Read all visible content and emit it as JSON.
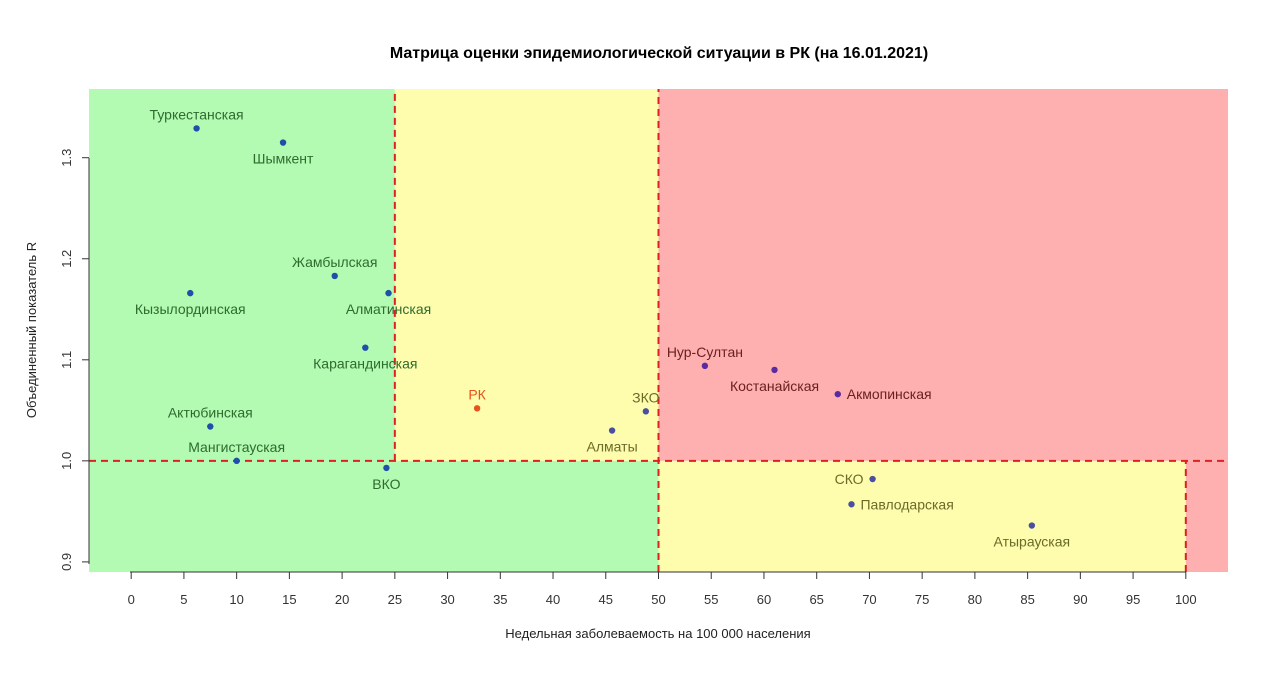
{
  "chart_data": {
    "type": "scatter",
    "title": "Матрица оценки эпидемиологической ситуации в РК (на 16.01.2021)",
    "xlabel": "Недельная заболеваемость на 100 000 населения",
    "ylabel": "Объединенный показатель R",
    "xlim": [
      -4,
      104
    ],
    "ylim": [
      0.89,
      1.368
    ],
    "xticks": [
      0,
      5,
      10,
      15,
      20,
      25,
      30,
      35,
      40,
      45,
      50,
      55,
      60,
      65,
      70,
      75,
      80,
      85,
      90,
      95,
      100
    ],
    "yticks": [
      0.9,
      1.0,
      1.1,
      1.2,
      1.3
    ],
    "ytick_labels": [
      "0.9",
      "1.0",
      "1.1",
      "1.2",
      "1.3"
    ],
    "grid": false,
    "zones": [
      {
        "x": [
          -4,
          25
        ],
        "y": [
          0.89,
          1.368
        ],
        "color": "#b3fab3"
      },
      {
        "x": [
          25,
          50
        ],
        "y": [
          1.0,
          1.368
        ],
        "color": "#fdfdad"
      },
      {
        "x": [
          -4,
          50
        ],
        "y": [
          0.89,
          1.0
        ],
        "color": "#b3fab3"
      },
      {
        "x": [
          50,
          104
        ],
        "y": [
          1.0,
          1.368
        ],
        "color": "#feb0b0"
      },
      {
        "x": [
          50,
          100
        ],
        "y": [
          0.89,
          1.0
        ],
        "color": "#fdfdad"
      },
      {
        "x": [
          100,
          104
        ],
        "y": [
          0.89,
          1.0
        ],
        "color": "#feb0b0"
      }
    ],
    "threshold_lines": [
      {
        "x": [
          25,
          25
        ],
        "y": [
          1.0,
          1.368
        ]
      },
      {
        "x": [
          50,
          50
        ],
        "y": [
          0.89,
          1.368
        ]
      },
      {
        "x": [
          -4,
          104
        ],
        "y": [
          1.0,
          1.0
        ]
      },
      {
        "x": [
          100,
          100
        ],
        "y": [
          0.89,
          1.0
        ]
      }
    ],
    "threshold_color": "#e02020",
    "points": [
      {
        "name": "Туркестанская",
        "x": 6.2,
        "y": 1.329,
        "color": "#1f4fa8",
        "label_color": "#2f6b2f",
        "label_pos": "above"
      },
      {
        "name": "Шымкент",
        "x": 14.4,
        "y": 1.315,
        "color": "#1f4fa8",
        "label_color": "#2f6b2f",
        "label_pos": "below"
      },
      {
        "name": "Жамбылская",
        "x": 19.3,
        "y": 1.183,
        "color": "#1f4fa8",
        "label_color": "#2f6b2f",
        "label_pos": "above"
      },
      {
        "name": "Кызылординская",
        "x": 5.6,
        "y": 1.166,
        "color": "#1f4fa8",
        "label_color": "#2f6b2f",
        "label_pos": "below"
      },
      {
        "name": "Алматинская",
        "x": 24.4,
        "y": 1.166,
        "color": "#1f4fa8",
        "label_color": "#2f6b2f",
        "label_pos": "below"
      },
      {
        "name": "Карагандинская",
        "x": 22.2,
        "y": 1.112,
        "color": "#1f4fa8",
        "label_color": "#2f6b2f",
        "label_pos": "below"
      },
      {
        "name": "Актюбинская",
        "x": 7.5,
        "y": 1.034,
        "color": "#1f4fa8",
        "label_color": "#2f6b2f",
        "label_pos": "above"
      },
      {
        "name": "Мангистауская",
        "x": 10.0,
        "y": 1.0,
        "color": "#1f4fa8",
        "label_color": "#2f6b2f",
        "label_pos": "above"
      },
      {
        "name": "ВКО",
        "x": 24.2,
        "y": 0.993,
        "color": "#1f4fa8",
        "label_color": "#2f6b2f",
        "label_pos": "below"
      },
      {
        "name": "РК",
        "x": 32.8,
        "y": 1.052,
        "color": "#e8521e",
        "label_color": "#e8521e",
        "label_pos": "above"
      },
      {
        "name": "ЗКО",
        "x": 48.8,
        "y": 1.049,
        "color": "#4a4fa0",
        "label_color": "#6b6b2a",
        "label_pos": "above"
      },
      {
        "name": "Алматы",
        "x": 45.6,
        "y": 1.03,
        "color": "#4a4fa0",
        "label_color": "#6b6b2a",
        "label_pos": "below"
      },
      {
        "name": "Нур-Султан",
        "x": 54.4,
        "y": 1.094,
        "color": "#5a2aa0",
        "label_color": "#6b2020",
        "label_pos": "above"
      },
      {
        "name": "Костанайская",
        "x": 61.0,
        "y": 1.09,
        "color": "#5a2aa0",
        "label_color": "#6b2020",
        "label_pos": "below"
      },
      {
        "name": "Акмопинская",
        "x": 67.0,
        "y": 1.066,
        "color": "#5a2aa0",
        "label_color": "#6b2020",
        "label_pos": "right"
      },
      {
        "name": "СКО",
        "x": 70.3,
        "y": 0.982,
        "color": "#4a4fa0",
        "label_color": "#6b6b2a",
        "label_pos": "left"
      },
      {
        "name": "Павлодарская",
        "x": 68.3,
        "y": 0.957,
        "color": "#4a4fa0",
        "label_color": "#6b6b2a",
        "label_pos": "right"
      },
      {
        "name": "Атырауская",
        "x": 85.4,
        "y": 0.936,
        "color": "#4a4fa0",
        "label_color": "#6b6b2a",
        "label_pos": "below"
      }
    ]
  }
}
